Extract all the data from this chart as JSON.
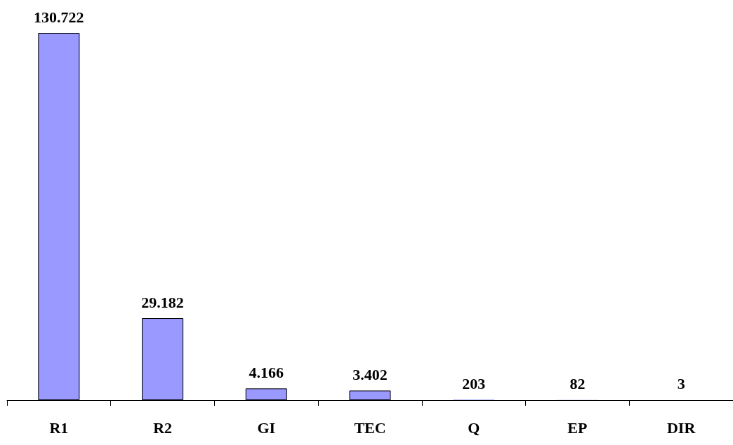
{
  "chart_data": {
    "type": "bar",
    "categories": [
      "R1",
      "R2",
      "GI",
      "TEC",
      "Q",
      "EP",
      "DIR"
    ],
    "values": [
      130722,
      29182,
      4166,
      3402,
      203,
      82,
      3
    ],
    "value_labels": [
      "130.722",
      "29.182",
      "4.166",
      "3.402",
      "203",
      "82",
      "3"
    ],
    "color": "#9999ff"
  }
}
